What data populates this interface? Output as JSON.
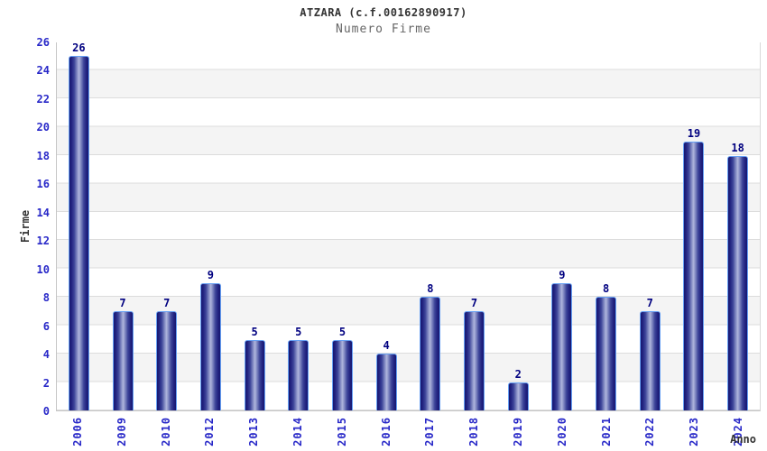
{
  "chart_data": {
    "type": "bar",
    "title": "ATZARA (c.f.00162890917)",
    "subtitle": "Numero Firme",
    "xlabel": "Anno",
    "ylabel": "Firme",
    "categories": [
      "2006",
      "2009",
      "2010",
      "2012",
      "2013",
      "2014",
      "2015",
      "2016",
      "2017",
      "2018",
      "2019",
      "2020",
      "2021",
      "2022",
      "2023",
      "2024"
    ],
    "values": [
      26,
      7,
      7,
      9,
      5,
      5,
      5,
      4,
      8,
      7,
      2,
      9,
      8,
      7,
      19,
      18
    ],
    "ylim": [
      0,
      26
    ],
    "yticks": [
      0,
      2,
      4,
      6,
      8,
      10,
      12,
      14,
      16,
      18,
      20,
      22,
      24,
      26
    ],
    "grid": true,
    "legend": "none",
    "band_fill": "alternating horizontal bands every 2 units",
    "colors": {
      "bar_edge_dark": "#171770",
      "bar_center_light": "#b0b6dd",
      "bar_border": "#66a0f4",
      "tick_label_blue": "#2828c8",
      "value_label_navy": "#000080",
      "axis_title_gray": "#333333",
      "subtitle_gray": "#666666",
      "gridline": "#dcdcdc",
      "band_gray": "#f4f4f4"
    }
  }
}
